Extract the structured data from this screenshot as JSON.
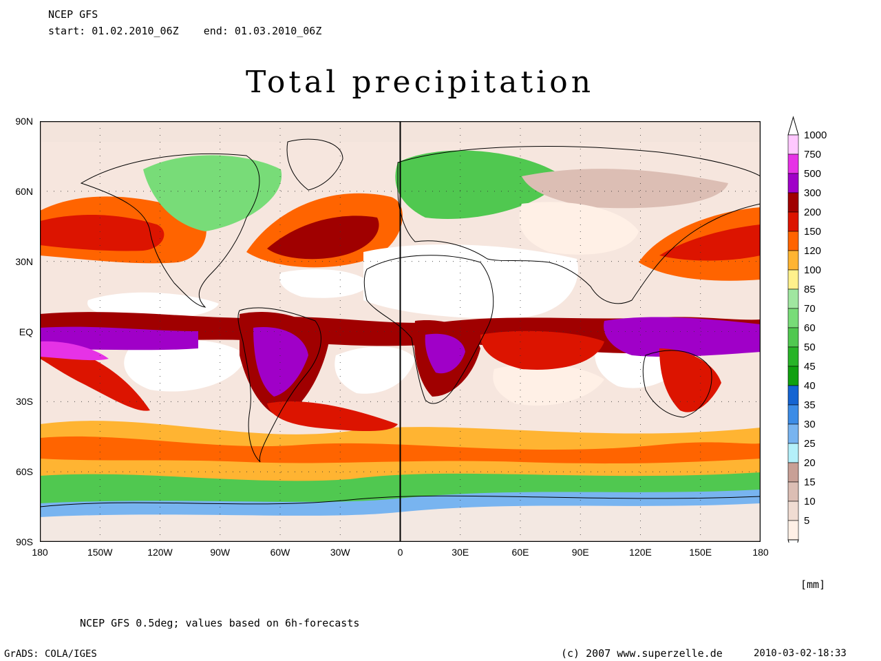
{
  "header": {
    "model": "NCEP GFS",
    "period": "start: 01.02.2010_06Z    end: 01.03.2010_06Z"
  },
  "title": "Total precipitation",
  "map": {
    "type": "global filled-contour precipitation map",
    "projection": "equirectangular",
    "lon_range": [
      -180,
      180
    ],
    "lat_range": [
      -90,
      90
    ],
    "lat_labels": [
      "90N",
      "60N",
      "30N",
      "EQ",
      "30S",
      "60S",
      "90S"
    ],
    "lon_labels": [
      "180",
      "150W",
      "120W",
      "90W",
      "60W",
      "30W",
      "0",
      "30E",
      "60E",
      "90E",
      "120E",
      "150E",
      "180"
    ],
    "lat_values": [
      90,
      60,
      30,
      0,
      -30,
      -60,
      -90
    ],
    "lon_values": [
      -180,
      -150,
      -120,
      -90,
      -60,
      -30,
      0,
      30,
      60,
      90,
      120,
      150,
      180
    ]
  },
  "legend": {
    "unit": "[mm]",
    "levels": [
      "1000",
      "750",
      "500",
      "300",
      "200",
      "150",
      "120",
      "100",
      "85",
      "70",
      "60",
      "50",
      "45",
      "40",
      "35",
      "30",
      "25",
      "20",
      "15",
      "10",
      "5"
    ],
    "colors": [
      "#ffc8ff",
      "#e632e6",
      "#a000c8",
      "#a00000",
      "#dc1400",
      "#ff6400",
      "#ffb432",
      "#fff08c",
      "#a0e6a0",
      "#78dc78",
      "#50c850",
      "#28b428",
      "#10a010",
      "#1464d2",
      "#3c8ce6",
      "#78b4f0",
      "#b4f0fa",
      "#c8a096",
      "#dcbeb4",
      "#f0dcd2",
      "#fff0e6"
    ],
    "top_color": "#ffffff"
  },
  "footer": {
    "note": "NCEP GFS 0.5deg; values based on 6h-forecasts",
    "software": "GrADS: COLA/IGES",
    "copyright": "(c) 2007 www.superzelle.de",
    "timestamp": "2010-03-02-18:33"
  }
}
